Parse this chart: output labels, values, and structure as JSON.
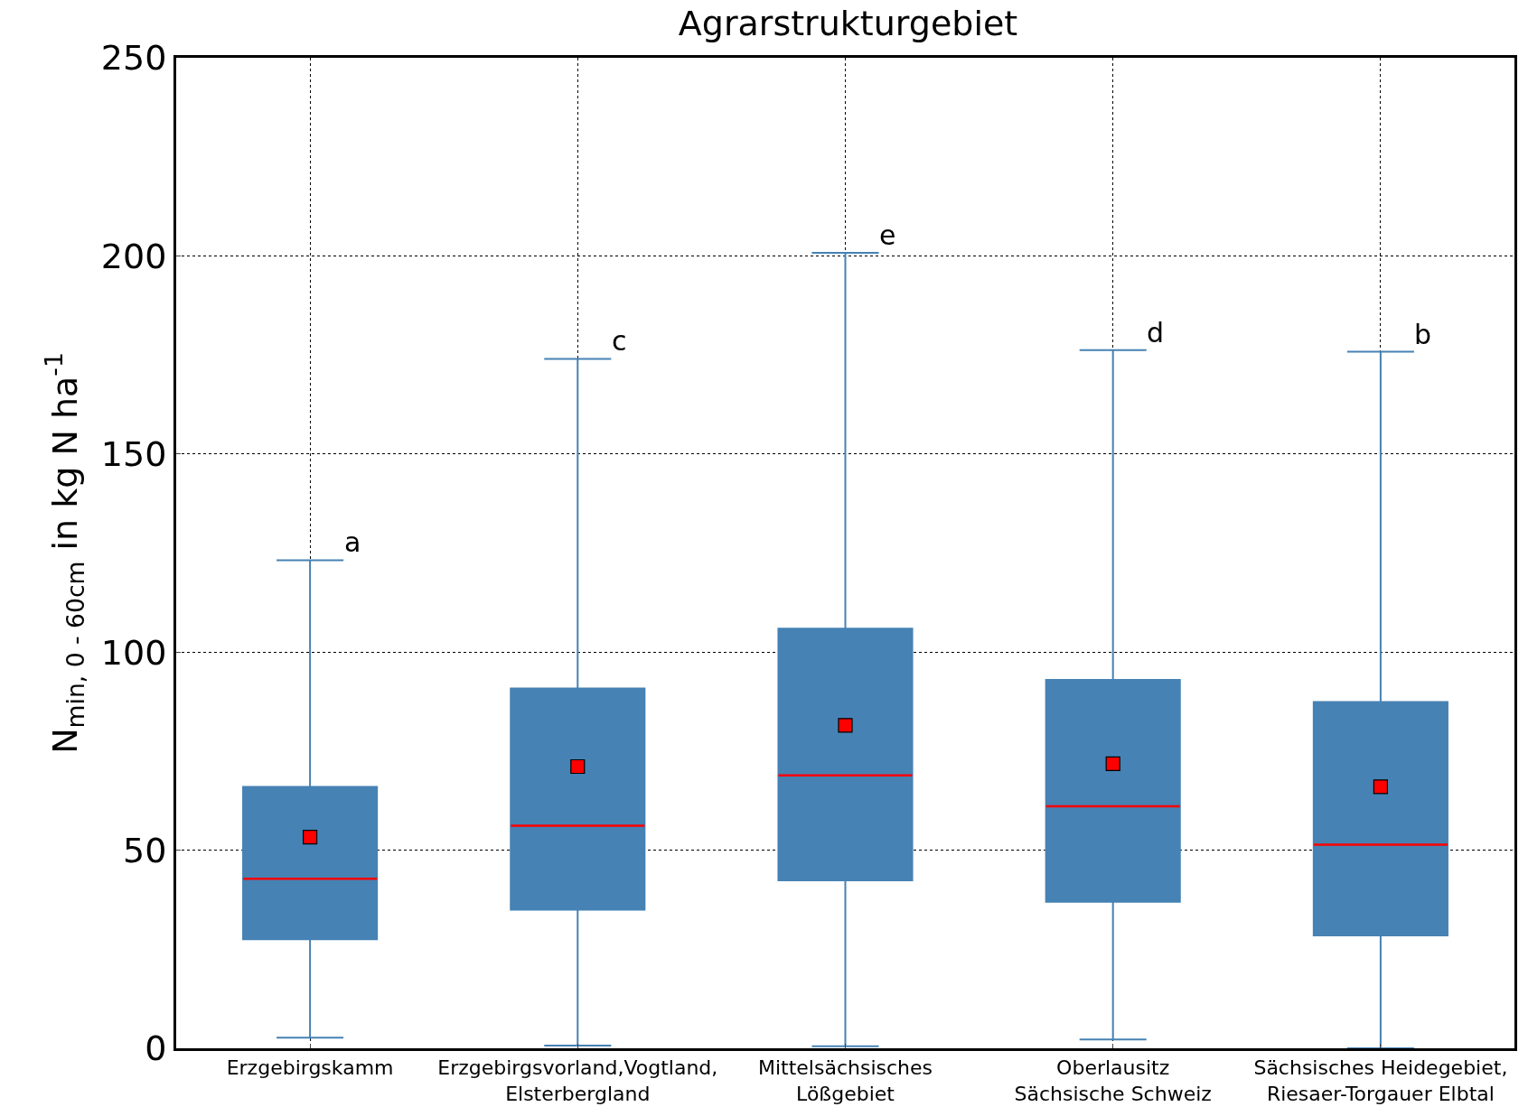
{
  "chart_data": {
    "type": "box",
    "title": "Agrarstrukturgebiet",
    "ylabel": "N$_{min, 0 - 60cm}$ in kg N ha$^{-1}$",
    "categories": [
      "Erzgebirgskamm",
      "Erzgebirgsvorland,Vogtland,\nElsterbergland",
      "Mittelsächsisches\nLößgebiet",
      "Oberlausitz\nSächsische Schweiz",
      "Sächsisches Heidegebiet,\nRiesaer-Torgauer Elbtal"
    ],
    "series": [
      {
        "color": "#4682b4",
        "boxes": [
          {
            "low": 2.7,
            "q1": 27.5,
            "median": 42.8,
            "q3": 66,
            "high": 123.2,
            "mean": 53.3
          },
          {
            "low": 0.7,
            "q1": 35,
            "median": 56.2,
            "q3": 90.8,
            "high": 174,
            "mean": 71.1
          },
          {
            "low": 0.5,
            "q1": 42.4,
            "median": 68.9,
            "q3": 105.9,
            "high": 200.8,
            "mean": 81.5
          },
          {
            "low": 2.2,
            "q1": 37,
            "median": 61.1,
            "q3": 93,
            "high": 176.2,
            "mean": 71.8
          },
          {
            "low": 0,
            "q1": 28.5,
            "median": 51.4,
            "q3": 87.4,
            "high": 175.8,
            "mean": 66
          }
        ]
      }
    ],
    "ylim": [
      0,
      250
    ],
    "yticks": [
      0,
      50,
      100,
      150,
      200,
      250
    ],
    "grid": true,
    "marker": "square",
    "annotations": [
      {
        "text": "a",
        "x": "Erzgebirgskamm",
        "y": 123.2
      },
      {
        "text": "c",
        "x": "Erzgebirgsvorland,Vogtland,\nElsterbergland",
        "y": 174
      },
      {
        "text": "e",
        "x": "Mittelsächsisches\nLößgebiet",
        "y": 200.8
      },
      {
        "text": "d",
        "x": "Oberlausitz\nSächsische Schweiz",
        "y": 176.2
      },
      {
        "text": "b",
        "x": "Sächsisches Heidegebiet,\nRiesaer-Torgauer Elbtal",
        "y": 175.8
      }
    ]
  }
}
